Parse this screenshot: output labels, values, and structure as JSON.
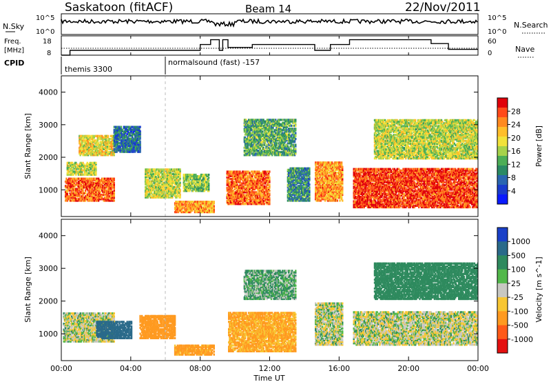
{
  "header": {
    "station": "Saskatoon (fitACF)",
    "beam": "Beam 14",
    "date": "22/Nov/2011"
  },
  "noise_panel": {
    "left_label": "N.Sky",
    "right_label": "N.Search",
    "left_ticks": [
      "10^5",
      "10^0"
    ],
    "right_ticks": [
      "10^5",
      "10^0"
    ]
  },
  "freq_panel": {
    "left_label_1": "Freq.",
    "left_label_2": "[MHz]",
    "right_label": "Nave",
    "left_ticks": [
      "18",
      "8"
    ],
    "right_ticks": [
      "60",
      "0"
    ]
  },
  "cpid": {
    "label": "CPID",
    "programs": [
      {
        "name": "themis 3300",
        "start_hour": 0
      },
      {
        "name": "normalsound (fast) -157",
        "start_hour": 6
      }
    ]
  },
  "power_colorbar": {
    "label": "Power [dB]",
    "ticks": [
      "28",
      "24",
      "20",
      "16",
      "12",
      "8",
      "4"
    ],
    "colors": [
      "#e0000a",
      "#ff4a1a",
      "#ff8a20",
      "#ffbe2a",
      "#f2e23a",
      "#a6d24a",
      "#4cae56",
      "#2a8a64",
      "#2a66b0",
      "#1a3ccc",
      "#0a1aff"
    ]
  },
  "velocity_colorbar": {
    "label": "Velocity [m s^-1]",
    "ticks": [
      "1000",
      "500",
      "100",
      "25",
      "-25",
      "-100",
      "-500",
      "-1000"
    ],
    "colors": [
      "#1a40c8",
      "#2a6a8a",
      "#2e8a5e",
      "#52b84a",
      "#c8c8c2",
      "#f8c632",
      "#ff9a20",
      "#ff5a18",
      "#e41010"
    ]
  },
  "chart_data": {
    "type": "heatmap",
    "xlabel": "Time UT",
    "x_ticks": [
      "00:00",
      "04:00",
      "08:00",
      "12:00",
      "16:00",
      "20:00",
      "00:00"
    ],
    "xlim_hours": [
      0,
      24
    ],
    "ylabel": "Slant Range [km]",
    "y_ticks": [
      1000,
      2000,
      3000,
      4000
    ],
    "ylim_km": [
      180,
      4500
    ],
    "frequency_mhz_schedule": [
      {
        "from": 0,
        "to": 0.5,
        "value": 8
      },
      {
        "from": 0.5,
        "to": 8.0,
        "value": 10.5
      },
      {
        "from": 8.0,
        "to": 8.6,
        "value": 13.5
      },
      {
        "from": 8.6,
        "to": 9.1,
        "value": 16
      },
      {
        "from": 9.1,
        "to": 9.3,
        "value": 10.5
      },
      {
        "from": 9.3,
        "to": 9.6,
        "value": 16
      },
      {
        "from": 9.6,
        "to": 11.0,
        "value": 12
      },
      {
        "from": 11.0,
        "to": 14.6,
        "value": 13.5
      },
      {
        "from": 14.6,
        "to": 15.5,
        "value": 10.5
      },
      {
        "from": 15.5,
        "to": 16.6,
        "value": 13.5
      },
      {
        "from": 16.6,
        "to": 21.3,
        "value": 16
      },
      {
        "from": 21.3,
        "to": 22.3,
        "value": 14
      },
      {
        "from": 22.3,
        "to": 24.0,
        "value": 11
      }
    ],
    "power_regions_db": [
      {
        "t0": 0.2,
        "t1": 3.0,
        "r0": 700,
        "r1": 1400,
        "value": 24
      },
      {
        "t0": 0.3,
        "t1": 2.0,
        "r0": 1500,
        "r1": 1900,
        "value": 16
      },
      {
        "t0": 1.0,
        "t1": 3.0,
        "r0": 2100,
        "r1": 2700,
        "value": 18
      },
      {
        "t0": 3.0,
        "t1": 4.5,
        "r0": 2200,
        "r1": 3000,
        "value": 8
      },
      {
        "t0": 4.8,
        "t1": 6.8,
        "r0": 800,
        "r1": 1700,
        "value": 16
      },
      {
        "t0": 6.5,
        "t1": 8.8,
        "r0": 350,
        "r1": 700,
        "value": 22
      },
      {
        "t0": 7.0,
        "t1": 8.5,
        "r0": 1000,
        "r1": 1500,
        "value": 14
      },
      {
        "t0": 9.5,
        "t1": 12.0,
        "r0": 600,
        "r1": 1600,
        "value": 24
      },
      {
        "t0": 10.5,
        "t1": 13.5,
        "r0": 2100,
        "r1": 3200,
        "value": 12
      },
      {
        "t0": 13.0,
        "t1": 14.3,
        "r0": 700,
        "r1": 1700,
        "value": 10
      },
      {
        "t0": 14.6,
        "t1": 16.2,
        "r0": 700,
        "r1": 1900,
        "value": 22
      },
      {
        "t0": 16.8,
        "t1": 24.0,
        "r0": 500,
        "r1": 1700,
        "value": 26
      },
      {
        "t0": 18.0,
        "t1": 24.0,
        "r0": 2000,
        "r1": 3200,
        "value": 16
      }
    ],
    "velocity_regions_ms": [
      {
        "t0": 0.1,
        "t1": 3.0,
        "r0": 800,
        "r1": 1700,
        "value": 0
      },
      {
        "t0": 2.0,
        "t1": 4.0,
        "r0": 900,
        "r1": 1400,
        "value": 400
      },
      {
        "t0": 4.5,
        "t1": 6.5,
        "r0": 900,
        "r1": 1600,
        "value": -200
      },
      {
        "t0": 6.5,
        "t1": 8.8,
        "r0": 400,
        "r1": 700,
        "value": -150
      },
      {
        "t0": 9.6,
        "t1": 13.5,
        "r0": 500,
        "r1": 1700,
        "value": -120
      },
      {
        "t0": 10.5,
        "t1": 13.5,
        "r0": 2100,
        "r1": 3000,
        "value": 60
      },
      {
        "t0": 14.6,
        "t1": 16.2,
        "r0": 700,
        "r1": 2000,
        "value": 0
      },
      {
        "t0": 16.8,
        "t1": 24.0,
        "r0": 700,
        "r1": 1700,
        "value": 0
      },
      {
        "t0": 18.0,
        "t1": 24.0,
        "r0": 2100,
        "r1": 3200,
        "value": 200
      }
    ]
  }
}
